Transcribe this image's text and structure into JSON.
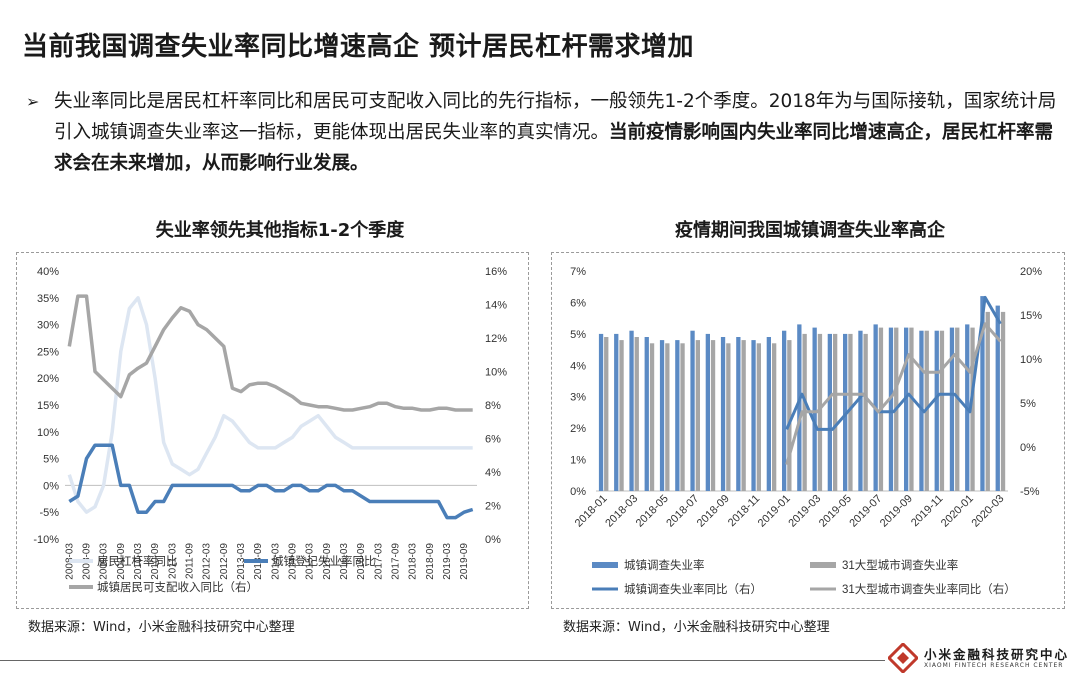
{
  "header": {
    "title": "当前我国调查失业率同比增速高企 预计居民杠杆需求增加",
    "bullet_marker": "➢",
    "bullet_normal": "失业率同比是居民杠杆率同比和居民可支配收入同比的先行指标，一般领先1-2个季度。2018年为与国际接轨，国家统计局引入城镇调查失业率这一指标，更能体现出居民失业率的真实情况。",
    "bullet_bold": "当前疫情影响国内失业率同比增速高企，居民杠杆率需求会在未来增加，从而影响行业发展。"
  },
  "footer": {
    "source_left": "数据来源：Wind，小米金融科技研究中心整理",
    "source_right": "数据来源：Wind，小米金融科技研究中心整理",
    "logo_cn": "小米金融科技研究中心",
    "logo_en": "XIAOMI FINTECH RESEARCH CENTER"
  },
  "colors": {
    "dark_blue": "#4a7eb8",
    "light_blue": "#dde6f2",
    "gray": "#a6a6a6",
    "bar_blue": "#5b8ac4"
  },
  "chart_data": [
    {
      "type": "line",
      "title": "失业率领先其他指标1-2个季度",
      "x": [
        "2008-03",
        "2008-06",
        "2008-09",
        "2008-12",
        "2009-03",
        "2009-06",
        "2009-09",
        "2009-12",
        "2010-03",
        "2010-06",
        "2010-09",
        "2010-12",
        "2011-03",
        "2011-06",
        "2011-09",
        "2011-12",
        "2012-03",
        "2012-06",
        "2012-09",
        "2012-12",
        "2013-03",
        "2013-06",
        "2013-09",
        "2013-12",
        "2014-03",
        "2014-06",
        "2014-09",
        "2014-12",
        "2015-03",
        "2015-06",
        "2015-09",
        "2015-12",
        "2016-03",
        "2016-06",
        "2016-09",
        "2016-12",
        "2017-03",
        "2017-06",
        "2017-09",
        "2017-12",
        "2018-03",
        "2018-06",
        "2018-09",
        "2018-12",
        "2019-03",
        "2019-06",
        "2019-09",
        "2019-12"
      ],
      "x_tick_labels": [
        "2008-03",
        "2008-09",
        "2009-03",
        "2009-09",
        "2010-03",
        "2010-09",
        "2011-03",
        "2011-09",
        "2012-03",
        "2012-09",
        "2013-03",
        "2013-09",
        "2014-03",
        "2014-09",
        "2015-03",
        "2015-09",
        "2016-03",
        "2016-09",
        "2017-03",
        "2017-09",
        "2018-03",
        "2018-09",
        "2019-03",
        "2019-09"
      ],
      "y_left": {
        "ticks": [
          "40%",
          "35%",
          "30%",
          "25%",
          "20%",
          "15%",
          "10%",
          "5%",
          "0%",
          "-5%",
          "-10%"
        ],
        "lim": [
          -10,
          40
        ]
      },
      "y_right": {
        "ticks": [
          "16%",
          "14%",
          "12%",
          "10%",
          "8%",
          "6%",
          "4%",
          "2%",
          "0%"
        ],
        "lim": [
          0,
          16
        ]
      },
      "series": [
        {
          "name": "居民杠杆率同比",
          "axis": "left",
          "color": "#dde6f2",
          "values": [
            2,
            -3,
            -5,
            -4,
            0,
            10,
            25,
            33,
            35,
            30,
            20,
            8,
            4,
            3,
            2,
            3,
            6,
            9,
            13,
            12,
            10,
            8,
            7,
            7,
            7,
            8,
            9,
            11,
            12,
            13,
            11,
            9,
            8,
            7,
            7,
            7,
            7,
            7,
            7,
            7,
            7,
            7,
            7,
            7,
            7,
            7,
            7,
            7
          ]
        },
        {
          "name": "城镇登记失业率同比",
          "axis": "left",
          "color": "#4a7eb8",
          "values": [
            -3,
            -2,
            5,
            7.5,
            7.5,
            7.5,
            0,
            0,
            -5,
            -5,
            -3,
            -3,
            0,
            0,
            0,
            0,
            0,
            0,
            0,
            0,
            -1,
            -1,
            0,
            0,
            -1,
            -1,
            0,
            0,
            -1,
            -1,
            0,
            0,
            -1,
            -1,
            -2,
            -3,
            -3,
            -3,
            -3,
            -3,
            -3,
            -3,
            -3,
            -3,
            -6,
            -6,
            -5,
            -4.5
          ]
        },
        {
          "name": "城镇居民可支配收入同比（右）",
          "axis": "right",
          "color": "#a6a6a6",
          "values": [
            11.5,
            14.5,
            14.5,
            10,
            9.5,
            9,
            8.5,
            9.8,
            10.2,
            10.5,
            11.5,
            12.5,
            13.2,
            13.8,
            13.6,
            12.8,
            12.5,
            12,
            11.5,
            9,
            8.8,
            9.2,
            9.3,
            9.3,
            9.1,
            8.8,
            8.5,
            8.1,
            8,
            7.9,
            7.9,
            7.8,
            7.7,
            7.7,
            7.8,
            7.9,
            8.1,
            8.1,
            7.9,
            7.8,
            7.8,
            7.7,
            7.7,
            7.8,
            7.8,
            7.7,
            7.7,
            7.7
          ]
        }
      ],
      "legend": [
        "居民杠杆率同比",
        "城镇登记失业率同比",
        "城镇居民可支配收入同比（右）"
      ]
    },
    {
      "type": "bar+line",
      "title": "疫情期间我国城镇调查失业率高企",
      "categories": [
        "2018-01",
        "2018-02",
        "2018-03",
        "2018-04",
        "2018-05",
        "2018-06",
        "2018-07",
        "2018-08",
        "2018-09",
        "2018-10",
        "2018-11",
        "2018-12",
        "2019-01",
        "2019-02",
        "2019-03",
        "2019-04",
        "2019-05",
        "2019-06",
        "2019-07",
        "2019-08",
        "2019-09",
        "2019-10",
        "2019-11",
        "2019-12",
        "2020-01",
        "2020-02",
        "2020-03"
      ],
      "x_tick_labels": [
        "2018-01",
        "2018-03",
        "2018-05",
        "2018-07",
        "2018-09",
        "2018-11",
        "2019-01",
        "2019-03",
        "2019-05",
        "2019-07",
        "2019-09",
        "2019-11",
        "2020-01",
        "2020-03"
      ],
      "y_left": {
        "ticks": [
          "7%",
          "6%",
          "5%",
          "4%",
          "3%",
          "2%",
          "1%",
          "0%"
        ],
        "lim": [
          0,
          7
        ]
      },
      "y_right": {
        "ticks": [
          "20%",
          "15%",
          "10%",
          "5%",
          "0%",
          "-5%"
        ],
        "lim": [
          -5,
          20
        ]
      },
      "series": [
        {
          "name": "城镇调查失业率",
          "type": "bar",
          "axis": "left",
          "color": "#5b8ac4",
          "values": [
            5.0,
            5.0,
            5.1,
            4.9,
            4.8,
            4.8,
            5.1,
            5.0,
            4.9,
            4.9,
            4.8,
            4.9,
            5.1,
            5.3,
            5.2,
            5.0,
            5.0,
            5.1,
            5.3,
            5.2,
            5.2,
            5.1,
            5.1,
            5.2,
            5.3,
            6.2,
            5.9
          ]
        },
        {
          "name": "31大型城市调查失业率",
          "type": "bar",
          "axis": "left",
          "color": "#a6a6a6",
          "values": [
            4.9,
            4.8,
            4.9,
            4.7,
            4.7,
            4.7,
            4.8,
            4.8,
            4.7,
            4.8,
            4.7,
            4.7,
            4.8,
            5.0,
            5.0,
            5.0,
            5.0,
            5.0,
            5.2,
            5.2,
            5.2,
            5.1,
            5.1,
            5.2,
            5.2,
            5.7,
            5.7
          ]
        },
        {
          "name": "城镇调查失业率同比（右）",
          "type": "line",
          "axis": "right",
          "color": "#4a7eb8",
          "values": [
            null,
            null,
            null,
            null,
            null,
            null,
            null,
            null,
            null,
            null,
            null,
            null,
            2,
            6,
            2,
            2,
            4,
            6,
            4,
            4,
            6,
            4,
            6,
            6,
            4,
            17,
            14
          ]
        },
        {
          "name": "31大型城市调查失业率同比（右）",
          "type": "line",
          "axis": "right",
          "color": "#a6a6a6",
          "values": [
            null,
            null,
            null,
            null,
            null,
            null,
            null,
            null,
            null,
            null,
            null,
            null,
            -2,
            4,
            4,
            6,
            6,
            6,
            4,
            6,
            10.5,
            8.5,
            8.5,
            10.5,
            8.5,
            14,
            12
          ]
        }
      ],
      "legend": [
        "城镇调查失业率",
        "31大型城市调查失业率",
        "城镇调查失业率同比（右）",
        "31大型城市调查失业率同比（右）"
      ]
    }
  ]
}
